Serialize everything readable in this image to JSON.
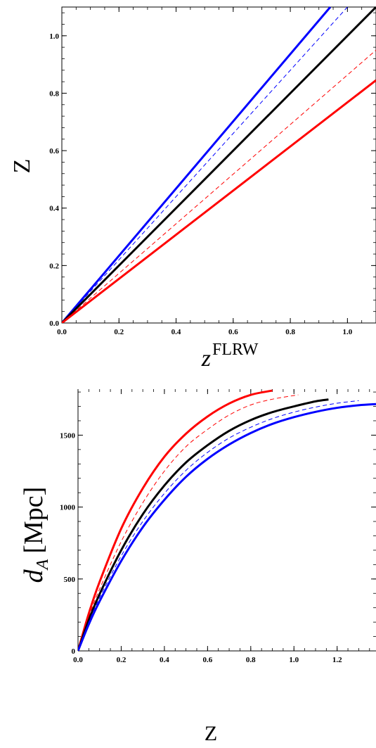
{
  "chart_data": [
    {
      "type": "line",
      "xlabel": "z",
      "xlabel_sup": "FLRW",
      "ylabel": "Z",
      "xlim": [
        0,
        1.1
      ],
      "ylim": [
        0,
        1.1
      ],
      "xticks": [
        "0.0",
        "0.2",
        "0.4",
        "0.6",
        "0.8",
        "1.0"
      ],
      "yticks": [
        "0.0",
        "0.2",
        "0.4",
        "0.6",
        "0.8",
        "1.0"
      ],
      "grid": false,
      "series": [
        {
          "color": "#0000ff",
          "style": "solid",
          "x": [
            0,
            0.94
          ],
          "y": [
            0,
            1.1
          ]
        },
        {
          "color": "#0000ff",
          "style": "dashed",
          "x": [
            0,
            1.0
          ],
          "y": [
            0,
            1.1
          ]
        },
        {
          "color": "#000000",
          "style": "solid",
          "x": [
            0,
            1.1
          ],
          "y": [
            0,
            1.1
          ]
        },
        {
          "color": "#ff0000",
          "style": "dashed",
          "x": [
            0,
            1.1
          ],
          "y": [
            0,
            0.95
          ]
        },
        {
          "color": "#ff0000",
          "style": "solid",
          "x": [
            0,
            1.1
          ],
          "y": [
            0,
            0.845
          ]
        }
      ]
    },
    {
      "type": "line",
      "xlabel": "Z",
      "ylabel": "d",
      "ylabel_sub": "A",
      "ylabel_unit": "[Mpc]",
      "xlim": [
        0,
        1.38
      ],
      "ylim": [
        0,
        1820
      ],
      "xticks": [
        "0.0",
        "0.2",
        "0.4",
        "0.6",
        "0.8",
        "1.0",
        "1.2"
      ],
      "yticks": [
        "0",
        "500",
        "1000",
        "1500"
      ],
      "grid": false,
      "series": [
        {
          "color": "#ff0000",
          "style": "solid",
          "x": [
            0,
            0.05,
            0.1,
            0.2,
            0.3,
            0.4,
            0.5,
            0.6,
            0.7,
            0.8,
            0.9
          ],
          "y": [
            0,
            260,
            480,
            850,
            1130,
            1350,
            1510,
            1630,
            1720,
            1780,
            1810
          ]
        },
        {
          "color": "#ff0000",
          "style": "dashed",
          "x": [
            0,
            0.05,
            0.1,
            0.2,
            0.3,
            0.4,
            0.5,
            0.6,
            0.7,
            0.8,
            0.9,
            1.02
          ],
          "y": [
            0,
            235,
            430,
            760,
            1030,
            1250,
            1420,
            1540,
            1640,
            1710,
            1750,
            1780
          ]
        },
        {
          "color": "#000000",
          "style": "solid",
          "x": [
            0,
            0.05,
            0.1,
            0.2,
            0.3,
            0.4,
            0.5,
            0.6,
            0.7,
            0.8,
            0.9,
            1.0,
            1.1,
            1.16
          ],
          "y": [
            0,
            215,
            395,
            700,
            950,
            1150,
            1310,
            1430,
            1530,
            1605,
            1660,
            1700,
            1735,
            1748
          ]
        },
        {
          "color": "#0000ff",
          "style": "dashed",
          "x": [
            0,
            0.05,
            0.1,
            0.2,
            0.3,
            0.4,
            0.5,
            0.6,
            0.7,
            0.8,
            0.9,
            1.0,
            1.1,
            1.2,
            1.3
          ],
          "y": [
            0,
            200,
            370,
            660,
            900,
            1095,
            1255,
            1380,
            1480,
            1555,
            1615,
            1660,
            1695,
            1722,
            1740
          ]
        },
        {
          "color": "#0000ff",
          "style": "solid",
          "x": [
            0,
            0.05,
            0.1,
            0.2,
            0.3,
            0.4,
            0.5,
            0.6,
            0.7,
            0.8,
            0.9,
            1.0,
            1.1,
            1.2,
            1.3,
            1.38
          ],
          "y": [
            0,
            185,
            345,
            625,
            860,
            1050,
            1210,
            1335,
            1435,
            1515,
            1578,
            1625,
            1662,
            1690,
            1708,
            1716
          ]
        }
      ]
    }
  ]
}
